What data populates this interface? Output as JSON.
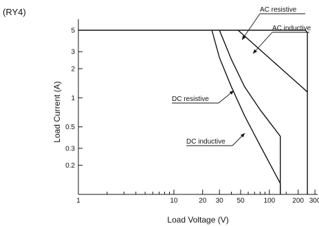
{
  "chart_data": {
    "type": "line",
    "model_label": "(RY4)",
    "xlabel": "Load Voltage (V)",
    "ylabel": "Load Current (A)",
    "x_scale": "log",
    "y_scale": "log",
    "xlim": [
      1,
      320
    ],
    "ylim": [
      0.1,
      6.5
    ],
    "x_ticks": [
      {
        "value": 1,
        "label": "1"
      },
      {
        "value": 10,
        "label": "10"
      },
      {
        "value": 20,
        "label": "20"
      },
      {
        "value": 30,
        "label": "30"
      },
      {
        "value": 50,
        "label": "50"
      },
      {
        "value": 100,
        "label": "100"
      },
      {
        "value": 200,
        "label": "200"
      },
      {
        "value": 300,
        "label": "300"
      }
    ],
    "x_minor_ticks": [
      2,
      3,
      4,
      5,
      6,
      7,
      8,
      9,
      40,
      60,
      70,
      80,
      90,
      150,
      250
    ],
    "y_ticks": [
      {
        "value": 5,
        "label": "5"
      },
      {
        "value": 3,
        "label": "3"
      },
      {
        "value": 2,
        "label": "2"
      },
      {
        "value": 1,
        "label": "1"
      },
      {
        "value": 0.5,
        "label": "0.5"
      },
      {
        "value": 0.3,
        "label": "0.3"
      },
      {
        "value": 0.2,
        "label": "0.2"
      }
    ],
    "grid": false,
    "series": [
      {
        "name": "AC resistive",
        "points": [
          [
            1,
            5
          ],
          [
            240,
            5
          ],
          [
            250,
            4.7
          ],
          [
            250,
            0.1
          ]
        ]
      },
      {
        "name": "AC inductive",
        "points": [
          [
            47,
            5
          ],
          [
            250,
            1.15
          ]
        ]
      },
      {
        "name": "DC resistive",
        "points": [
          [
            30,
            5
          ],
          [
            40,
            2.5
          ],
          [
            55,
            1.3
          ],
          [
            80,
            0.75
          ],
          [
            130,
            0.4
          ],
          [
            130,
            0.1
          ]
        ]
      },
      {
        "name": "DC inductive",
        "points": [
          [
            25,
            5
          ],
          [
            30,
            2.6
          ],
          [
            40,
            1.3
          ],
          [
            55,
            0.65
          ],
          [
            80,
            0.32
          ],
          [
            130,
            0.13
          ],
          [
            130,
            0.1
          ]
        ]
      }
    ],
    "annotations": [
      {
        "text": "AC resistive",
        "series": "AC resistive"
      },
      {
        "text": "AC inductive",
        "series": "AC inductive"
      },
      {
        "text": "DC resistive",
        "series": "DC resistive"
      },
      {
        "text": "DC inductive",
        "series": "DC inductive"
      }
    ]
  }
}
